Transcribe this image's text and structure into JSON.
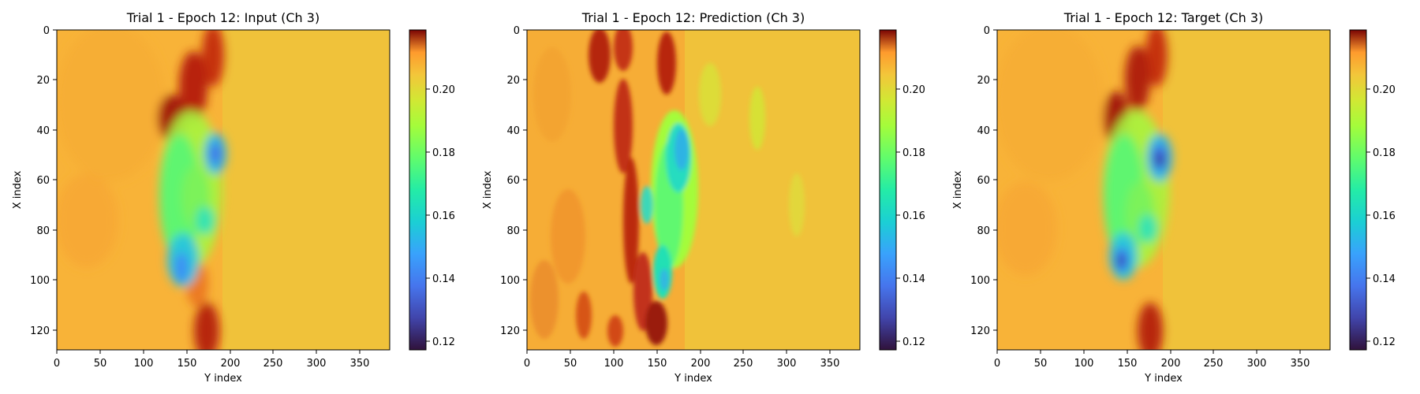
{
  "chart_data": [
    {
      "type": "heatmap",
      "title": "Trial 1 - Epoch 12: Input (Ch 3)",
      "xlabel": "Y index",
      "ylabel": "X index",
      "xlim": [
        0,
        384
      ],
      "ylim": [
        128,
        0
      ],
      "xticks": [
        "0",
        "50",
        "100",
        "150",
        "200",
        "250",
        "300",
        "350"
      ],
      "yticks": [
        "0",
        "20",
        "40",
        "60",
        "80",
        "100",
        "120"
      ],
      "colormap": "turbo",
      "colorbar": {
        "range": [
          0.117,
          0.218
        ],
        "ticks": [
          "0.12",
          "0.14",
          "0.16",
          "0.18",
          "0.20"
        ]
      }
    },
    {
      "type": "heatmap",
      "title": "Trial 1 - Epoch 12: Prediction (Ch 3)",
      "xlabel": "Y index",
      "ylabel": "X index",
      "xlim": [
        0,
        384
      ],
      "ylim": [
        128,
        0
      ],
      "xticks": [
        "0",
        "50",
        "100",
        "150",
        "200",
        "250",
        "300",
        "350"
      ],
      "yticks": [
        "0",
        "20",
        "40",
        "60",
        "80",
        "100",
        "120"
      ],
      "colormap": "turbo",
      "colorbar": {
        "range": [
          0.117,
          0.218
        ],
        "ticks": [
          "0.12",
          "0.14",
          "0.16",
          "0.18",
          "0.20"
        ]
      }
    },
    {
      "type": "heatmap",
      "title": "Trial 1 - Epoch 12: Target (Ch 3)",
      "xlabel": "Y index",
      "ylabel": "X index",
      "xlim": [
        0,
        384
      ],
      "ylim": [
        128,
        0
      ],
      "xticks": [
        "0",
        "50",
        "100",
        "150",
        "200",
        "250",
        "300",
        "350"
      ],
      "yticks": [
        "0",
        "20",
        "40",
        "60",
        "80",
        "100",
        "120"
      ],
      "colormap": "turbo",
      "colorbar": {
        "range": [
          0.117,
          0.218
        ],
        "ticks": [
          "0.12",
          "0.14",
          "0.16",
          "0.18",
          "0.20"
        ]
      }
    }
  ]
}
